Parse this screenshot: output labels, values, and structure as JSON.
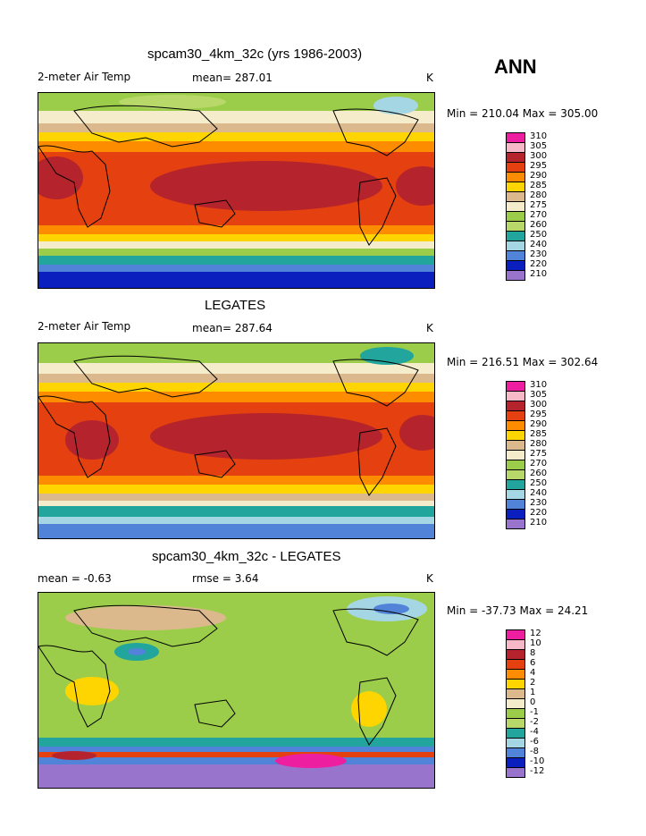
{
  "season": "ANN",
  "panels": [
    {
      "title": "spcam30_4km_32c (yrs 1986-2003)",
      "left_label": "2-meter Air Temp",
      "center_label": "mean= 287.01",
      "unit": "K",
      "minmax": "Min = 210.04 Max = 305.00",
      "levels": [
        "310",
        "305",
        "300",
        "295",
        "290",
        "285",
        "280",
        "275",
        "270",
        "260",
        "250",
        "240",
        "230",
        "220",
        "210"
      ]
    },
    {
      "title": "LEGATES",
      "left_label": "2-meter Air Temp",
      "center_label": "mean= 287.64",
      "unit": "K",
      "minmax": "Min = 216.51 Max = 302.64",
      "levels": [
        "310",
        "305",
        "300",
        "295",
        "290",
        "285",
        "280",
        "275",
        "270",
        "260",
        "250",
        "240",
        "230",
        "220",
        "210"
      ]
    },
    {
      "title": "spcam30_4km_32c - LEGATES",
      "left_label": "mean =   -0.63",
      "center_label": "rmse =    3.64",
      "unit": "K",
      "minmax": "Min = -37.73 Max =  24.21",
      "levels": [
        "12",
        "10",
        "8",
        "6",
        "4",
        "2",
        "1",
        "0",
        "-1",
        "-2",
        "-4",
        "-6",
        "-8",
        "-10",
        "-12"
      ]
    }
  ],
  "colors": [
    "#ee1ea0",
    "#f7b9c8",
    "#b5242c",
    "#e5400f",
    "#fe8c00",
    "#fed500",
    "#dcb98c",
    "#f5eccb",
    "#9bcd4a",
    "#b8d96a",
    "#21a59d",
    "#a5d6e3",
    "#5183d8",
    "#0b1fbf",
    "#9874cc"
  ]
}
